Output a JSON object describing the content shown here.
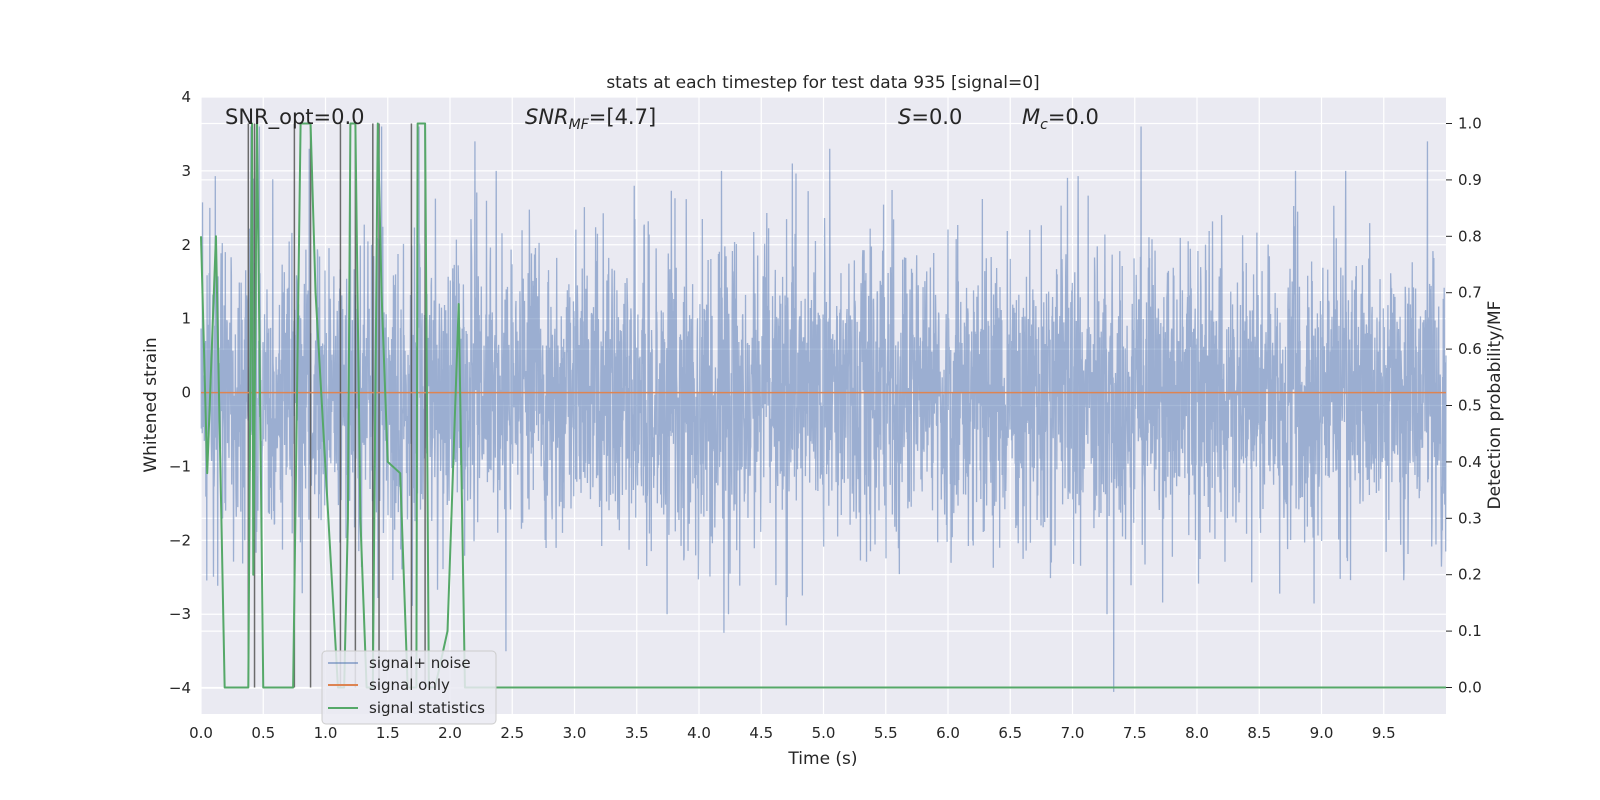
{
  "chart_data": {
    "type": "line",
    "title": "stats at each timestep for test data 935 [signal=0]",
    "xlabel": "Time (s)",
    "ylabel_left": "Whitened strain",
    "ylabel_right": "Detection probability/MF",
    "xlim": [
      0.0,
      10.0
    ],
    "ylim_left": [
      -4.35,
      4.0
    ],
    "ylim_right": [
      -0.047,
      1.047
    ],
    "x_ticks": [
      "0.0",
      "0.5",
      "1.0",
      "1.5",
      "2.0",
      "2.5",
      "3.0",
      "3.5",
      "4.0",
      "4.5",
      "5.0",
      "5.5",
      "6.0",
      "6.5",
      "7.0",
      "7.5",
      "8.0",
      "8.5",
      "9.0",
      "9.5"
    ],
    "y_ticks_left": [
      "−4",
      "−3",
      "−2",
      "−1",
      "0",
      "1",
      "2",
      "3",
      "4"
    ],
    "y_ticks_right": [
      "0.0",
      "0.1",
      "0.2",
      "0.3",
      "0.4",
      "0.5",
      "0.6",
      "0.7",
      "0.8",
      "0.9",
      "1.0"
    ],
    "grid": true,
    "legend_position": "bottom-left",
    "annotations": {
      "snr_opt": "SNR_opt=0.0",
      "snr_mf_main": "SNR",
      "snr_mf_sub": "MF",
      "snr_mf_value": "=[4.7]",
      "s_main": "S",
      "s_value": "=0.0",
      "mc_main": "M",
      "mc_sub": "c",
      "mc_value": "=0.0"
    },
    "series": [
      {
        "name": "signal+ noise",
        "color": "#4c72b0",
        "axis": "left",
        "noise_envelope_sigma": 1.0,
        "notable_peaks": [
          [
            0.07,
            2.5
          ],
          [
            0.4,
            3.6
          ],
          [
            0.47,
            3.6
          ],
          [
            0.87,
            3.3
          ],
          [
            1.2,
            3.6
          ],
          [
            1.45,
            3.6
          ],
          [
            1.75,
            3.6
          ],
          [
            2.2,
            3.4
          ],
          [
            2.45,
            3.0
          ],
          [
            4.75,
            3.1
          ],
          [
            5.05,
            3.3
          ],
          [
            7.55,
            3.6
          ],
          [
            9.85,
            3.4
          ],
          [
            2.45,
            -3.5
          ],
          [
            4.2,
            -3.25
          ],
          [
            4.7,
            -3.15
          ],
          [
            7.33,
            -4.05
          ]
        ]
      },
      {
        "name": "signal only",
        "color": "#dd8452",
        "axis": "left",
        "x": [
          0.0,
          10.0
        ],
        "y": [
          0.0,
          0.0
        ]
      },
      {
        "name": "signal statistics",
        "color": "#55a868",
        "axis": "right",
        "x": [
          0.0,
          0.05,
          0.12,
          0.19,
          0.38,
          0.41,
          0.42,
          0.45,
          0.5,
          0.74,
          0.8,
          0.86,
          0.88,
          0.92,
          1.1,
          1.15,
          1.18,
          1.2,
          1.24,
          1.28,
          1.33,
          1.38,
          1.42,
          1.45,
          1.5,
          1.6,
          1.66,
          1.7,
          1.73,
          1.74,
          1.8,
          1.83,
          1.88,
          1.98,
          2.07,
          2.12,
          2.5,
          10.0
        ],
        "y": [
          0.8,
          0.38,
          0.8,
          0.0,
          0.0,
          1.0,
          0.2,
          1.0,
          0.0,
          0.0,
          1.0,
          1.0,
          1.0,
          0.7,
          0.0,
          0.0,
          0.3,
          1.0,
          1.0,
          0.3,
          0.0,
          0.0,
          1.0,
          0.7,
          0.4,
          0.38,
          0.0,
          0.0,
          0.0,
          1.0,
          1.0,
          0.0,
          0.0,
          0.1,
          0.68,
          0.0,
          0.0,
          0.0
        ]
      }
    ],
    "marker_lines_x": [
      0.38,
      0.43,
      0.75,
      0.88,
      1.12,
      1.24,
      1.38,
      1.43,
      1.69,
      1.8
    ]
  }
}
